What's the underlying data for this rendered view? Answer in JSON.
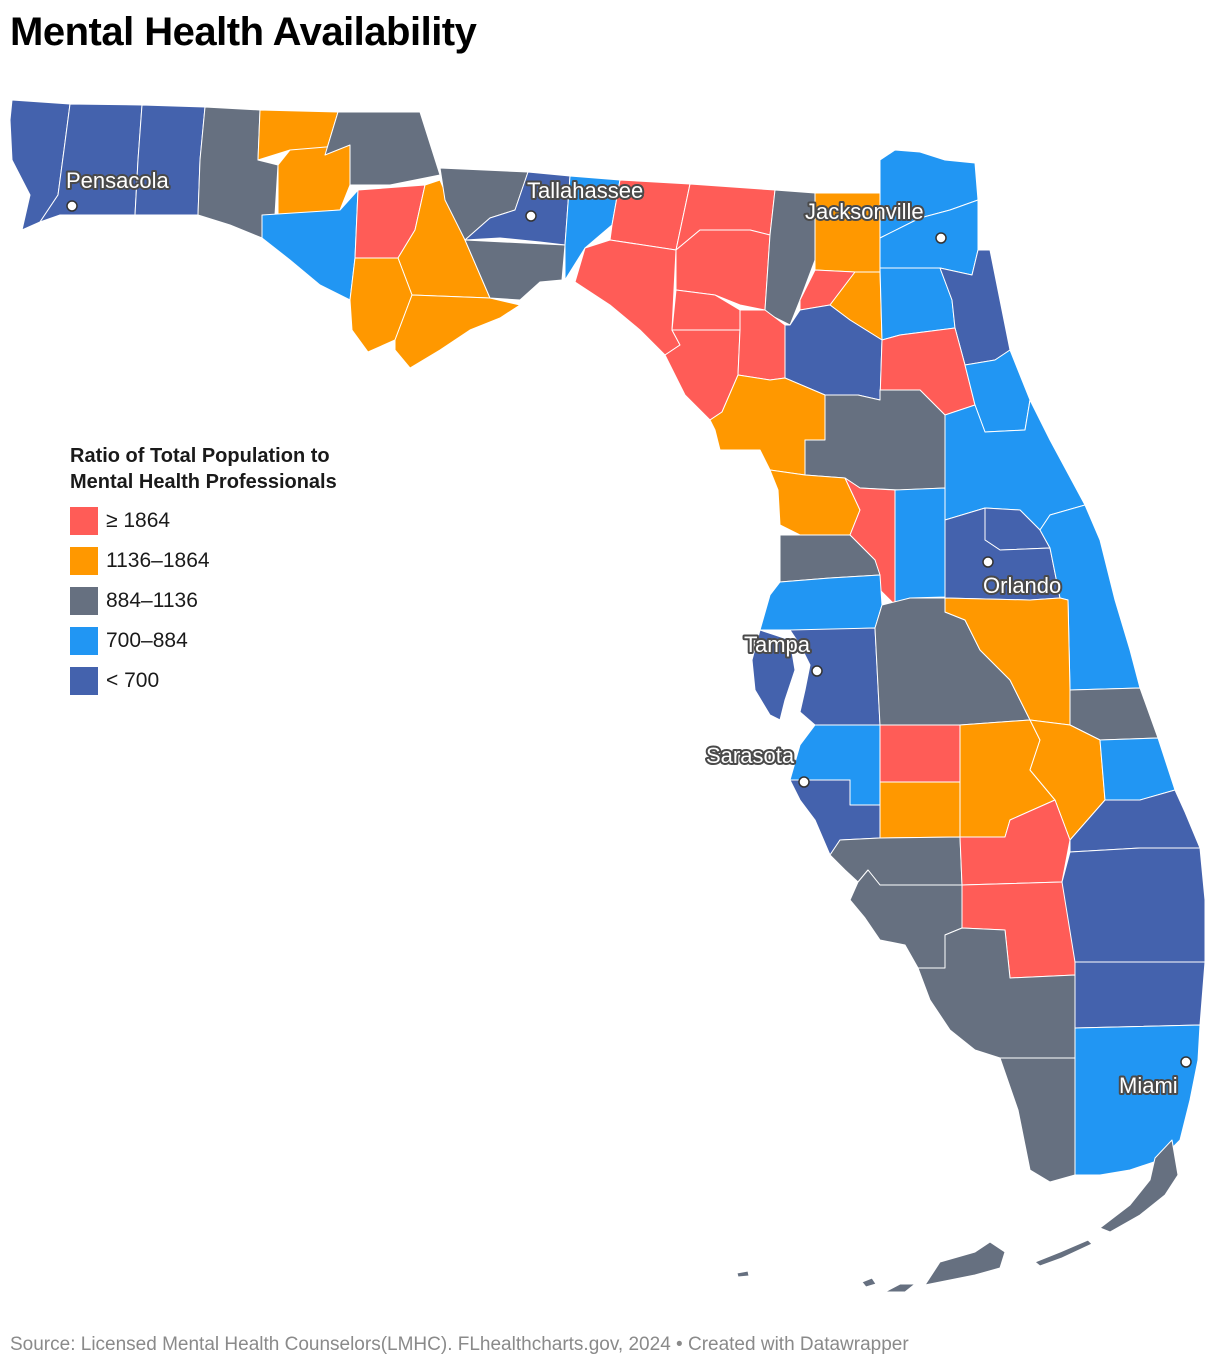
{
  "title": "Mental Health Availability",
  "legend": {
    "title_line1": "Ratio of Total Population to",
    "title_line2": "Mental Health Professionals",
    "items": [
      {
        "label": "≥ 1864",
        "color": "#ff5c57"
      },
      {
        "label": "1136–1864",
        "color": "#ff9800"
      },
      {
        "label": "884–1136",
        "color": "#667080"
      },
      {
        "label": "700–884",
        "color": "#2196f3"
      },
      {
        "label": "< 700",
        "color": "#4462ad"
      }
    ]
  },
  "cities": [
    "Pensacola",
    "Tallahassee",
    "Jacksonville",
    "Orlando",
    "Tampa",
    "Sarasota",
    "Miami"
  ],
  "footer": "Source: Licensed Mental Health Counselors(LMHC). FLhealthcharts.gov, 2024 • Created with Datawrapper"
}
